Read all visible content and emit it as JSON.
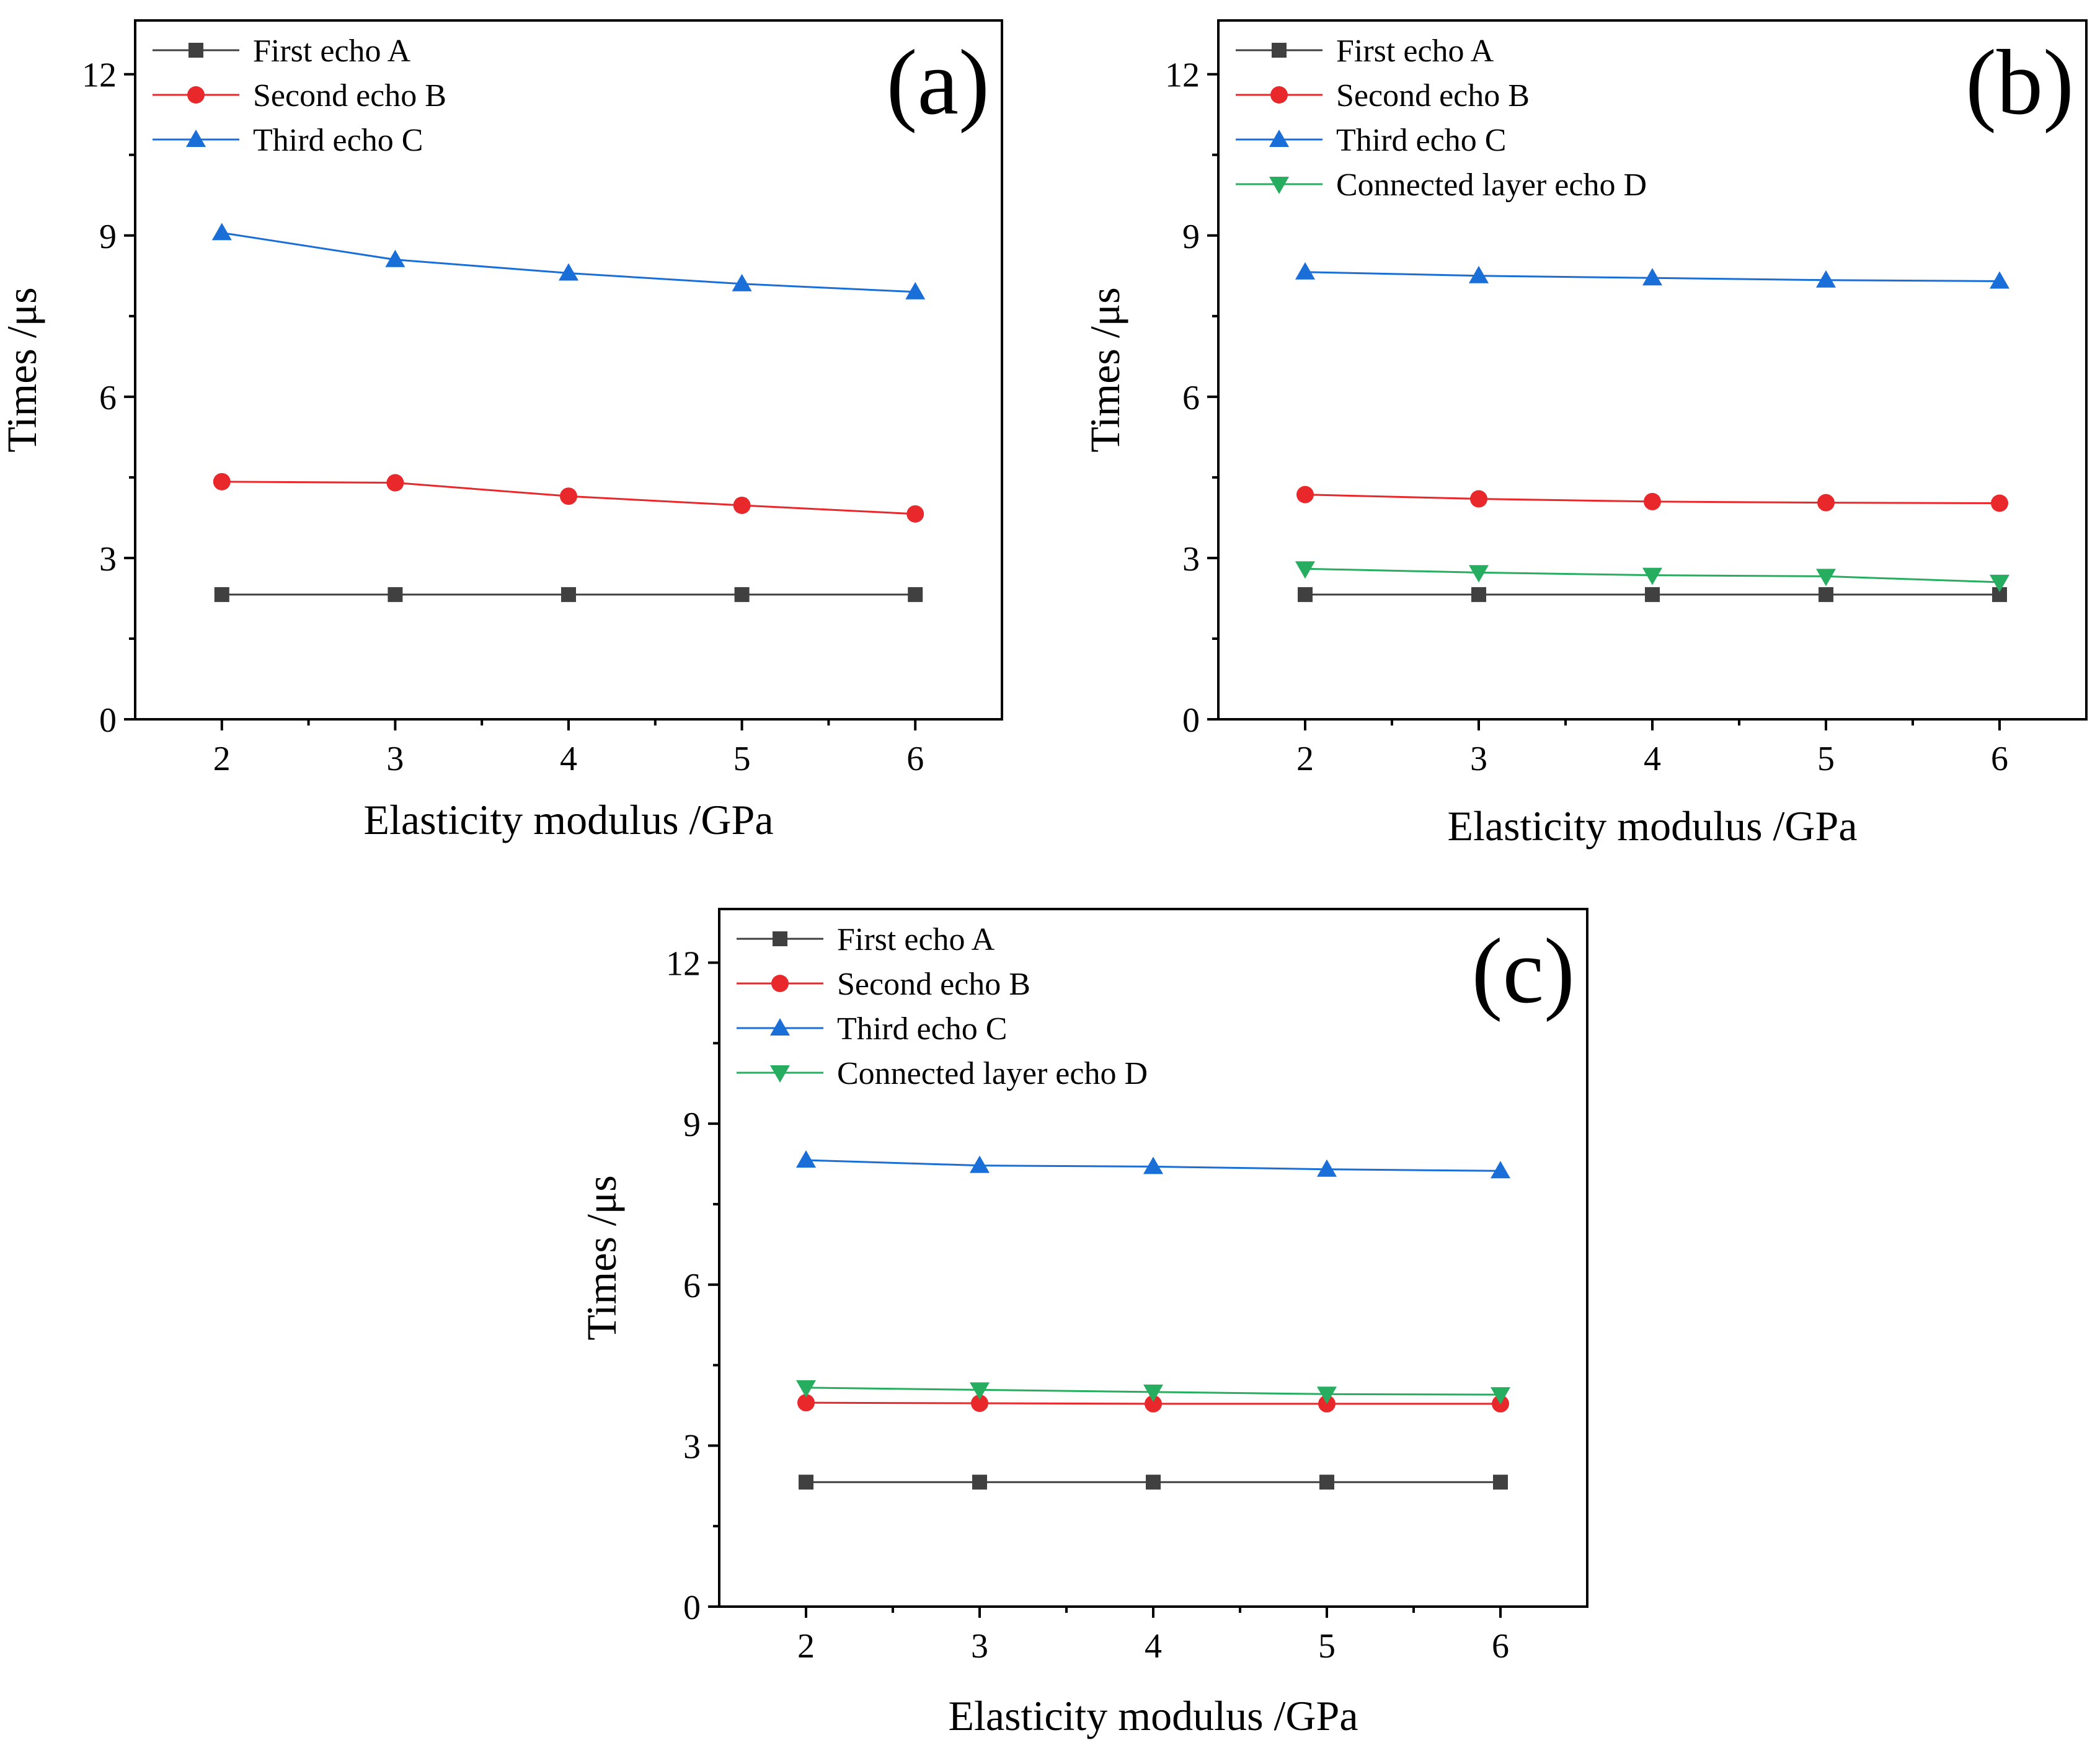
{
  "chart_data": [
    {
      "type": "line",
      "panel_label": "(a)",
      "xlabel": "Elasticity modulus /GPa",
      "ylabel": "Times /μs",
      "xlim": [
        1.5,
        6.5
      ],
      "ylim": [
        0,
        13
      ],
      "x": [
        2,
        3,
        4,
        5,
        6
      ],
      "xticks": [
        "2",
        "3",
        "4",
        "5",
        "6"
      ],
      "yticks": [
        "0",
        "3",
        "6",
        "9",
        "12"
      ],
      "legend_position": "top-left",
      "series": [
        {
          "name": "First echo A",
          "values": [
            2.32,
            2.32,
            2.32,
            2.32,
            2.32
          ],
          "color": "#404040",
          "marker": "square"
        },
        {
          "name": "Second echo B",
          "values": [
            4.42,
            4.4,
            4.15,
            3.98,
            3.82
          ],
          "color": "#e8282b",
          "marker": "circle"
        },
        {
          "name": "Third echo C",
          "values": [
            9.05,
            8.55,
            8.3,
            8.1,
            7.95
          ],
          "color": "#1a6ed8",
          "marker": "triangle-up"
        }
      ]
    },
    {
      "type": "line",
      "panel_label": "(b)",
      "xlabel": "Elasticity modulus /GPa",
      "ylabel": "Times /μs",
      "xlim": [
        1.5,
        6.5
      ],
      "ylim": [
        0,
        13
      ],
      "x": [
        2,
        3,
        4,
        5,
        6
      ],
      "xticks": [
        "2",
        "3",
        "4",
        "5",
        "6"
      ],
      "yticks": [
        "0",
        "3",
        "6",
        "9",
        "12"
      ],
      "legend_position": "top-left",
      "series": [
        {
          "name": "First echo A",
          "values": [
            2.32,
            2.32,
            2.32,
            2.32,
            2.32
          ],
          "color": "#404040",
          "marker": "square"
        },
        {
          "name": "Second echo B",
          "values": [
            4.18,
            4.1,
            4.05,
            4.03,
            4.02
          ],
          "color": "#e8282b",
          "marker": "circle"
        },
        {
          "name": "Third echo C",
          "values": [
            8.32,
            8.25,
            8.21,
            8.17,
            8.15
          ],
          "color": "#1a6ed8",
          "marker": "triangle-up"
        },
        {
          "name": "Connected layer echo D",
          "values": [
            2.8,
            2.73,
            2.68,
            2.66,
            2.55
          ],
          "color": "#27ad5f",
          "marker": "triangle-down"
        }
      ]
    },
    {
      "type": "line",
      "panel_label": "(c)",
      "xlabel": "Elasticity modulus /GPa",
      "ylabel": "Times /μs",
      "xlim": [
        1.5,
        6.5
      ],
      "ylim": [
        0,
        13
      ],
      "x": [
        2,
        3,
        4,
        5,
        6
      ],
      "xticks": [
        "2",
        "3",
        "4",
        "5",
        "6"
      ],
      "yticks": [
        "0",
        "3",
        "6",
        "9",
        "12"
      ],
      "legend_position": "top-left",
      "series": [
        {
          "name": "First echo A",
          "values": [
            2.32,
            2.32,
            2.32,
            2.32,
            2.32
          ],
          "color": "#404040",
          "marker": "square"
        },
        {
          "name": "Second echo B",
          "values": [
            3.8,
            3.79,
            3.78,
            3.78,
            3.78
          ],
          "color": "#e8282b",
          "marker": "circle"
        },
        {
          "name": "Third echo C",
          "values": [
            8.32,
            8.22,
            8.2,
            8.15,
            8.12
          ],
          "color": "#1a6ed8",
          "marker": "triangle-up"
        },
        {
          "name": "Connected layer echo D",
          "values": [
            4.08,
            4.04,
            4.0,
            3.96,
            3.95
          ],
          "color": "#27ad5f",
          "marker": "triangle-down"
        }
      ]
    }
  ]
}
